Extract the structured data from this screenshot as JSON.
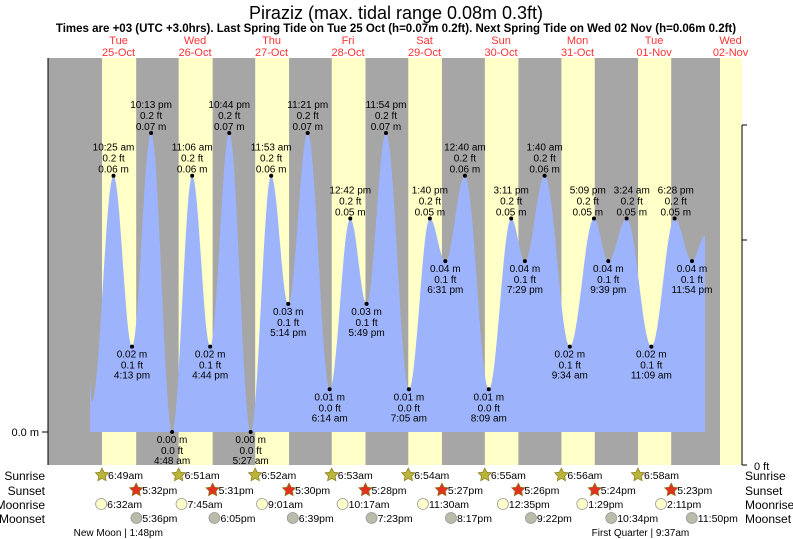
{
  "header": {
    "title": "Piraziz (max. tidal range 0.08m 0.3ft)",
    "subtitle": "Times are +03 (UTC +3.0hrs). Last Spring Tide on Tue 25 Oct (h=0.07m 0.2ft). Next Spring Tide on Wed 02 Nov (h=0.06m 0.2ft)"
  },
  "colors": {
    "night": "#a6a6a6",
    "day": "#ffffc8",
    "water": "#9db3fc",
    "day_label": "#ff3333",
    "sunrise_star": "#b9b43a",
    "sunset_star": "#e0321e",
    "moonrise": "#ffffcc",
    "moonset": "#bbbbaa"
  },
  "days": [
    {
      "dow": "Tue",
      "date": "25-Oct"
    },
    {
      "dow": "Wed",
      "date": "26-Oct"
    },
    {
      "dow": "Thu",
      "date": "27-Oct"
    },
    {
      "dow": "Fri",
      "date": "28-Oct"
    },
    {
      "dow": "Sat",
      "date": "29-Oct"
    },
    {
      "dow": "Sun",
      "date": "30-Oct"
    },
    {
      "dow": "Mon",
      "date": "31-Oct"
    },
    {
      "dow": "Tue",
      "date": "01-Nov"
    },
    {
      "dow": "Wed",
      "date": "02-Nov"
    }
  ],
  "axis": {
    "left_label": "0.0 m",
    "right_label": "0 ft"
  },
  "row_labels": {
    "sunrise": "Sunrise",
    "sunset": "Sunset",
    "moonrise": "Moonrise",
    "moonset": "Moonset"
  },
  "sunrise": [
    "6:49am",
    "6:51am",
    "6:52am",
    "6:53am",
    "6:54am",
    "6:55am",
    "6:56am",
    "6:58am"
  ],
  "sunset": [
    "5:32pm",
    "5:31pm",
    "5:30pm",
    "5:28pm",
    "5:27pm",
    "5:26pm",
    "5:24pm",
    "5:23pm"
  ],
  "moonrise": [
    "6:32am",
    "7:45am",
    "9:01am",
    "10:17am",
    "11:30am",
    "12:35pm",
    "1:29pm",
    "2:11pm"
  ],
  "moonset": [
    "5:36pm",
    "6:05pm",
    "6:39pm",
    "7:23pm",
    "8:17pm",
    "9:22pm",
    "10:34pm",
    "11:50pm"
  ],
  "moon_phases": [
    {
      "day": 0,
      "text": "New Moon | 1:48pm"
    },
    {
      "day": 7,
      "text": "First Quarter | 9:37am"
    }
  ],
  "chart_data": {
    "type": "area",
    "title": "Piraziz (max. tidal range 0.08m 0.3ft)",
    "ylabel_left": "m",
    "ylabel_right": "ft",
    "ylim_m": [
      0,
      0.077
    ],
    "tides": [
      {
        "day": 0,
        "time": "10:25 am",
        "type": "high",
        "m": "0.06 m",
        "ft": "0.2 ft",
        "value": 0.06
      },
      {
        "day": 0,
        "time": "4:13 pm",
        "type": "low",
        "m": "0.02 m",
        "ft": "0.1 ft",
        "value": 0.02
      },
      {
        "day": 0,
        "time": "10:13 pm",
        "type": "high",
        "m": "0.07 m",
        "ft": "0.2 ft",
        "value": 0.07
      },
      {
        "day": 1,
        "time": "4:48 am",
        "type": "low",
        "m": "0.00 m",
        "ft": "0.0 ft",
        "value": 0.0
      },
      {
        "day": 1,
        "time": "11:06 am",
        "type": "high",
        "m": "0.06 m",
        "ft": "0.2 ft",
        "value": 0.06
      },
      {
        "day": 1,
        "time": "4:44 pm",
        "type": "low",
        "m": "0.02 m",
        "ft": "0.1 ft",
        "value": 0.02
      },
      {
        "day": 1,
        "time": "10:44 pm",
        "type": "high",
        "m": "0.07 m",
        "ft": "0.2 ft",
        "value": 0.07
      },
      {
        "day": 2,
        "time": "5:27 am",
        "type": "low",
        "m": "0.00 m",
        "ft": "0.0 ft",
        "value": 0.0
      },
      {
        "day": 2,
        "time": "11:53 am",
        "type": "high",
        "m": "0.06 m",
        "ft": "0.2 ft",
        "value": 0.06
      },
      {
        "day": 2,
        "time": "5:14 pm",
        "type": "low",
        "m": "0.03 m",
        "ft": "0.1 ft",
        "value": 0.03
      },
      {
        "day": 2,
        "time": "11:21 pm",
        "type": "high",
        "m": "0.07 m",
        "ft": "0.2 ft",
        "value": 0.07
      },
      {
        "day": 3,
        "time": "6:14 am",
        "type": "low",
        "m": "0.01 m",
        "ft": "0.0 ft",
        "value": 0.01
      },
      {
        "day": 3,
        "time": "12:42 pm",
        "type": "high",
        "m": "0.05 m",
        "ft": "0.2 ft",
        "value": 0.05
      },
      {
        "day": 3,
        "time": "5:49 pm",
        "type": "low",
        "m": "0.03 m",
        "ft": "0.1 ft",
        "value": 0.03
      },
      {
        "day": 3,
        "time": "11:54 pm",
        "type": "high",
        "m": "0.07 m",
        "ft": "0.2 ft",
        "value": 0.07
      },
      {
        "day": 4,
        "time": "7:05 am",
        "type": "low",
        "m": "0.01 m",
        "ft": "0.0 ft",
        "value": 0.01
      },
      {
        "day": 4,
        "time": "1:40 pm",
        "type": "high",
        "m": "0.05 m",
        "ft": "0.2 ft",
        "value": 0.05
      },
      {
        "day": 4,
        "time": "6:31 pm",
        "type": "low",
        "m": "0.04 m",
        "ft": "0.1 ft",
        "value": 0.04
      },
      {
        "day": 5,
        "time": "12:40 am",
        "type": "high",
        "m": "0.06 m",
        "ft": "0.2 ft",
        "value": 0.06
      },
      {
        "day": 5,
        "time": "8:09 am",
        "type": "low",
        "m": "0.01 m",
        "ft": "0.0 ft",
        "value": 0.01
      },
      {
        "day": 5,
        "time": "3:11 pm",
        "type": "high",
        "m": "0.05 m",
        "ft": "0.2 ft",
        "value": 0.05
      },
      {
        "day": 5,
        "time": "7:29 pm",
        "type": "low",
        "m": "0.04 m",
        "ft": "0.1 ft",
        "value": 0.04
      },
      {
        "day": 6,
        "time": "1:40 am",
        "type": "high",
        "m": "0.06 m",
        "ft": "0.2 ft",
        "value": 0.06
      },
      {
        "day": 6,
        "time": "9:34 am",
        "type": "low",
        "m": "0.02 m",
        "ft": "0.1 ft",
        "value": 0.02
      },
      {
        "day": 6,
        "time": "5:09 pm",
        "type": "high",
        "m": "0.05 m",
        "ft": "0.2 ft",
        "value": 0.05
      },
      {
        "day": 6,
        "time": "9:39 pm",
        "type": "low",
        "m": "0.04 m",
        "ft": "0.1 ft",
        "value": 0.04
      },
      {
        "day": 7,
        "time": "3:24 am",
        "type": "high",
        "m": "0.05 m",
        "ft": "0.2 ft",
        "value": 0.05
      },
      {
        "day": 7,
        "time": "11:09 am",
        "type": "low",
        "m": "0.02 m",
        "ft": "0.1 ft",
        "value": 0.02
      },
      {
        "day": 7,
        "time": "6:28 pm",
        "type": "high",
        "m": "0.05 m",
        "ft": "0.2 ft",
        "value": 0.05
      },
      {
        "day": 7,
        "time": "11:54 pm",
        "type": "low",
        "m": "0.04 m",
        "ft": "0.1 ft",
        "value": 0.04
      }
    ]
  }
}
